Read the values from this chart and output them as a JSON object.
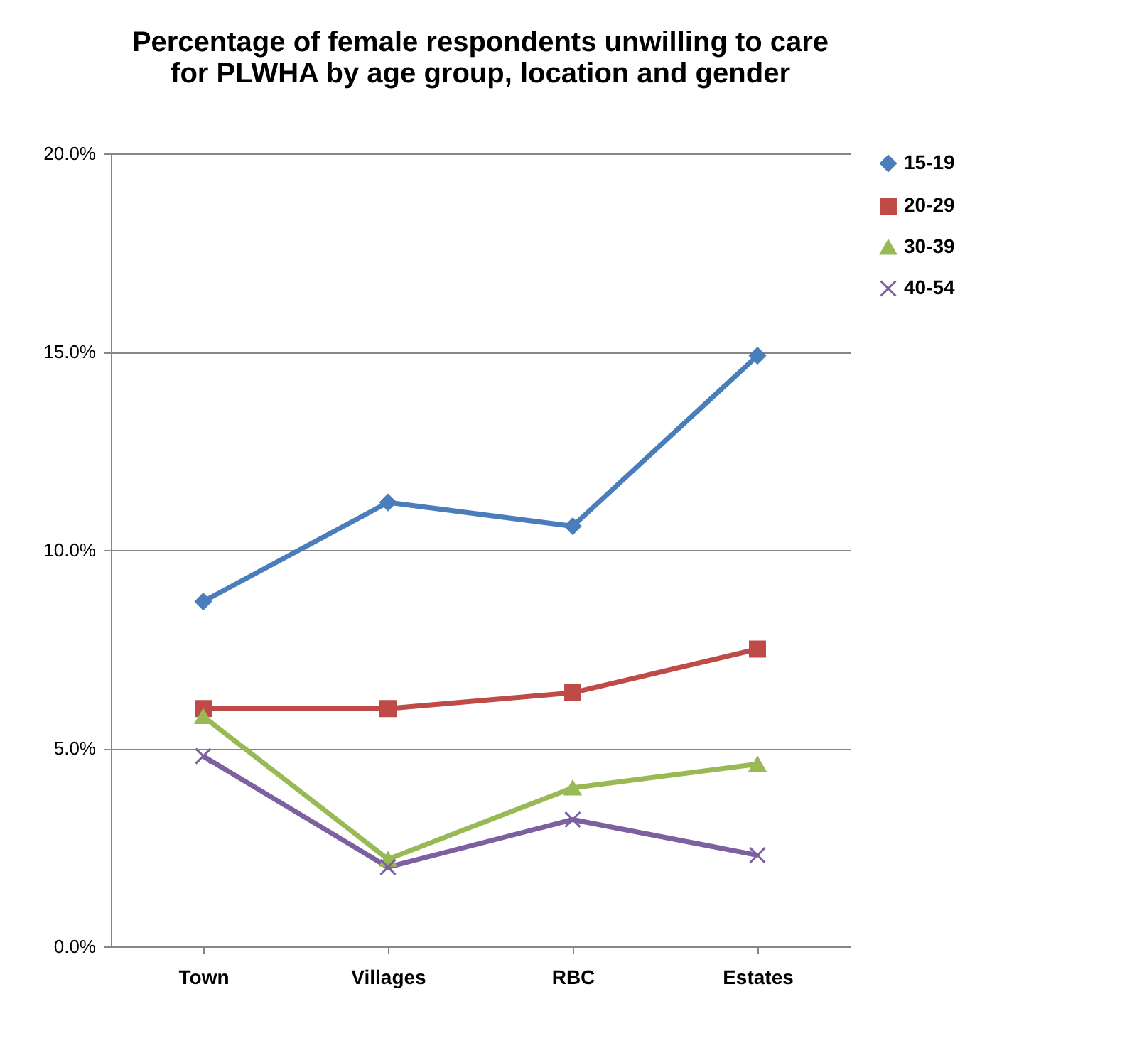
{
  "chart_data": {
    "type": "line",
    "title": "Percentage of female respondents unwilling to care for PLWHA by age group, location and gender",
    "categories": [
      "Town",
      "Villages",
      "RBC",
      "Estates"
    ],
    "series": [
      {
        "name": "15-19",
        "color": "#4a7ebb",
        "marker": "diamond",
        "values": [
          8.7,
          11.2,
          10.6,
          14.9
        ]
      },
      {
        "name": "20-29",
        "color": "#be4b48",
        "marker": "square",
        "values": [
          6.0,
          6.0,
          6.4,
          7.5
        ]
      },
      {
        "name": "30-39",
        "color": "#98b954",
        "marker": "triangle",
        "values": [
          5.8,
          2.2,
          4.0,
          4.6
        ]
      },
      {
        "name": "40-54",
        "color": "#7d60a0",
        "marker": "cross",
        "values": [
          4.8,
          2.0,
          3.2,
          2.3
        ]
      }
    ],
    "ylim": [
      0,
      20
    ],
    "yticks": [
      {
        "value": 0,
        "label": "0.0%"
      },
      {
        "value": 5,
        "label": "5.0%"
      },
      {
        "value": 10,
        "label": "10.0%"
      },
      {
        "value": 15,
        "label": "15.0%"
      },
      {
        "value": 20,
        "label": "20.0%"
      }
    ],
    "grid": "y",
    "legend": "right"
  }
}
